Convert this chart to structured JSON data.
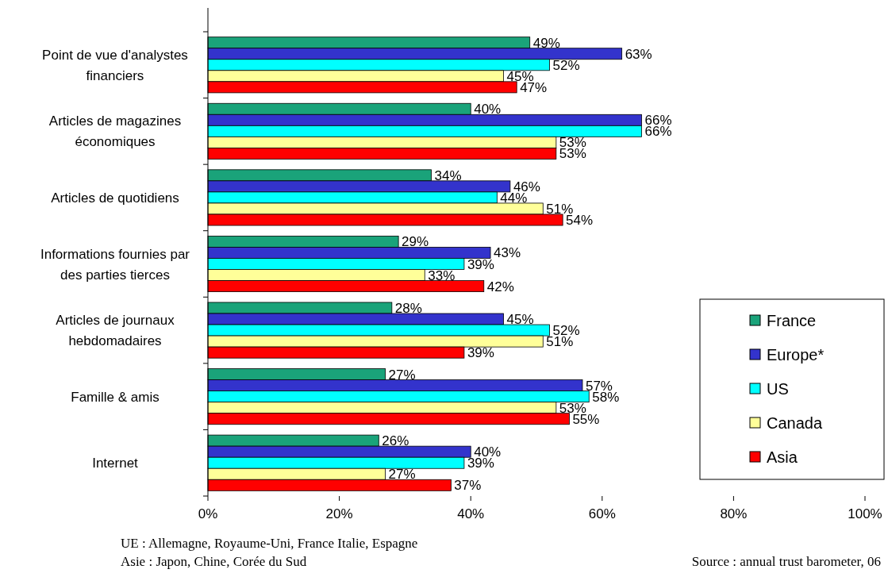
{
  "chart_data": {
    "type": "bar",
    "orientation": "horizontal",
    "categories": [
      "Point de vue d'analystes financiers",
      "Articles de magazines économiques",
      "Articles de quotidiens",
      "Informations fournies par des parties tierces",
      "Articles de journaux hebdomadaires",
      "Famille & amis",
      "Internet"
    ],
    "series": [
      {
        "name": "France",
        "color": "#1aa37a",
        "values": [
          49,
          40,
          34,
          29,
          28,
          27,
          26
        ],
        "value_labels": [
          "49%",
          "40%",
          "34%",
          "29%",
          "28%",
          "27%",
          "26%"
        ]
      },
      {
        "name": "Europe*",
        "color": "#3333cc",
        "values": [
          63,
          66,
          46,
          43,
          45,
          57,
          40
        ],
        "value_labels": [
          "63%",
          "66%",
          "46%",
          "43%",
          "45%",
          "57%",
          "40%"
        ]
      },
      {
        "name": "US",
        "color": "#00ffff",
        "values": [
          52,
          66,
          44,
          39,
          52,
          58,
          39
        ],
        "value_labels": [
          "52%",
          "66%",
          "44%",
          "39%",
          "52%",
          "58%",
          "39%"
        ]
      },
      {
        "name": "Canada",
        "color": "#ffff99",
        "values": [
          45,
          53,
          51,
          33,
          51,
          53,
          27
        ],
        "value_labels": [
          "45%",
          "53%",
          "51%",
          "33%",
          "51%",
          "53%",
          "27%"
        ]
      },
      {
        "name": "Asia",
        "color": "#ff0000",
        "values": [
          47,
          53,
          54,
          42,
          39,
          55,
          37
        ],
        "value_labels": [
          "47%",
          "53%",
          "54%",
          "42%",
          "39%",
          "55%",
          "37%"
        ]
      }
    ],
    "xlim": [
      0,
      100
    ],
    "xticks": [
      {
        "value": 0,
        "label": "0%"
      },
      {
        "value": 20,
        "label": "20%"
      },
      {
        "value": 40,
        "label": "40%"
      },
      {
        "value": 60,
        "label": "60%"
      },
      {
        "value": 80,
        "label": "80%"
      },
      {
        "value": 100,
        "label": "100%"
      }
    ],
    "legend": "bottom right",
    "grid": false,
    "annotations": [
      "UE : Allemagne, Royaume-Uni, France Italie, Espagne",
      "Asie : Japon, Chine, Corée du Sud",
      "Source : annual trust barometer, 06"
    ]
  }
}
